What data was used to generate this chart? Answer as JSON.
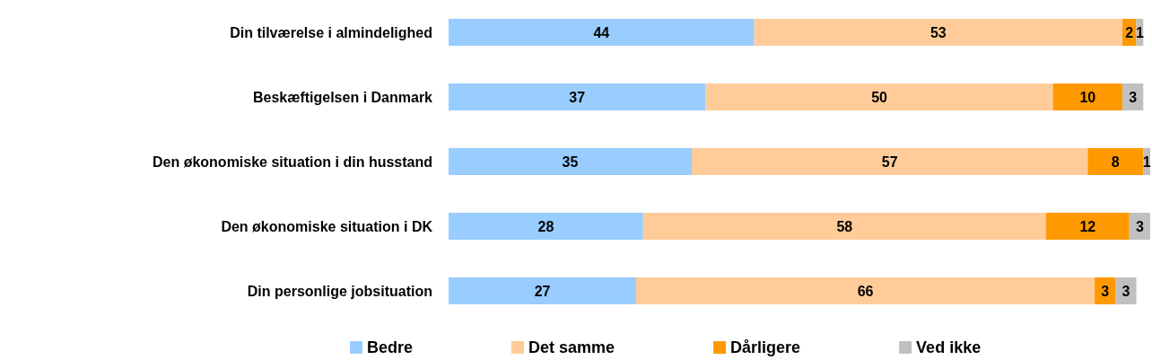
{
  "chart_data": {
    "type": "bar",
    "orientation": "horizontal",
    "stacked": true,
    "data_labels": true,
    "legend": "bottom",
    "categories": [
      "Din tilværelse i almindelighed",
      "Beskæftigelsen i Danmark",
      "Den økonomiske situation i din husstand",
      "Den økonomiske situation i DK",
      "Din personlige jobsituation"
    ],
    "series": [
      {
        "name": "Bedre",
        "color": "#99ccff",
        "values": [
          44,
          37,
          35,
          28,
          27
        ]
      },
      {
        "name": "Det samme",
        "color": "#ffcc99",
        "values": [
          53,
          50,
          57,
          58,
          66
        ]
      },
      {
        "name": "Dårligere",
        "color": "#ff9900",
        "values": [
          2,
          10,
          8,
          12,
          3
        ]
      },
      {
        "name": "Ved ikke",
        "color": "#c0c0c0",
        "values": [
          1,
          3,
          1,
          3,
          3
        ]
      }
    ]
  }
}
